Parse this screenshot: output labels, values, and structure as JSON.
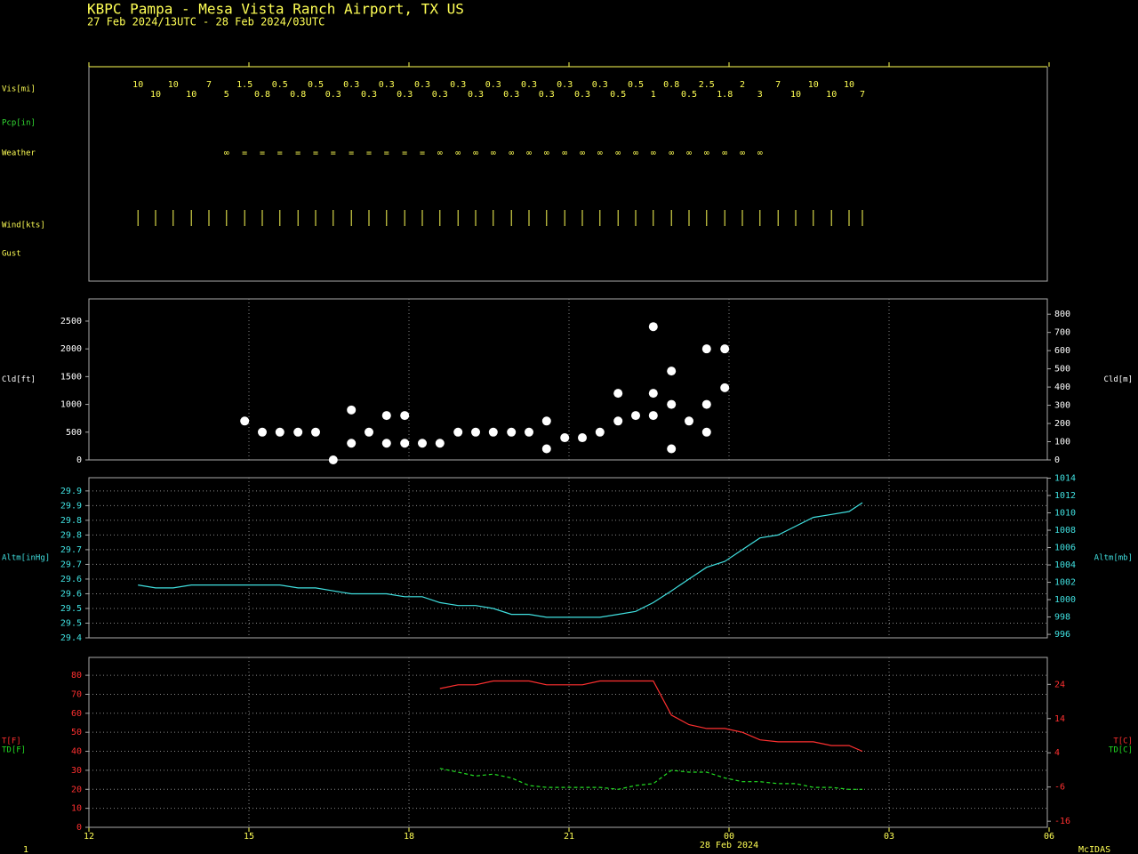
{
  "chart_data": {
    "type": "meteogram",
    "title": "KBPC  Pampa - Mesa Vista Ranch Airport, TX US",
    "subtitle": "27 Feb 2024/13UTC - 28 Feb 2024/03UTC",
    "date_label": "28 Feb 2024",
    "page_number": "1",
    "footer": "McIDAS",
    "xlim": [
      12,
      30
    ],
    "xticks": [
      12,
      15,
      18,
      21,
      {
        "value": 24,
        "label": "00"
      },
      {
        "value": 27,
        "label": "03"
      },
      {
        "value": 30,
        "label": "06"
      }
    ],
    "x": [
      12.92,
      13.25,
      13.58,
      13.92,
      14.25,
      14.58,
      14.92,
      15.25,
      15.58,
      15.92,
      16.25,
      16.58,
      16.92,
      17.25,
      17.58,
      17.92,
      18.25,
      18.58,
      18.92,
      19.25,
      19.58,
      19.92,
      20.25,
      20.58,
      20.92,
      21.25,
      21.58,
      21.92,
      22.25,
      22.58,
      22.92,
      23.25,
      23.58,
      23.92,
      24.25,
      24.58,
      24.92,
      25.25,
      25.58,
      25.92,
      26.25,
      26.5
    ],
    "panels": [
      {
        "type": "rows",
        "rows": [
          {
            "label": "Vis[mi]",
            "color": "#ffff55",
            "values": [
              10,
              10,
              10,
              10,
              7,
              5,
              1.5,
              0.8,
              0.5,
              0.8,
              0.5,
              0.3,
              0.3,
              0.3,
              0.3,
              0.3,
              0.3,
              0.3,
              0.3,
              0.3,
              0.3,
              0.3,
              0.3,
              0.3,
              0.3,
              0.3,
              0.3,
              0.5,
              0.5,
              1,
              0.8,
              0.5,
              2.5,
              1.8,
              2,
              3,
              7,
              10,
              10,
              10,
              10,
              7
            ]
          },
          {
            "label": "Pcp[in]",
            "color": "#33dd33"
          },
          {
            "label": "Weather",
            "color": "#ffff55",
            "values": [
              null,
              null,
              null,
              null,
              null,
              "∞",
              "=",
              "=",
              "=",
              "=",
              "=",
              "=",
              "=",
              "=",
              "=",
              "=",
              "=",
              "∞",
              "∞",
              "∞",
              "∞",
              "∞",
              "∞",
              "∞",
              "∞",
              "∞",
              "∞",
              "∞",
              "∞",
              "∞",
              "∞",
              "∞",
              "∞",
              "∞",
              "∞",
              "∞",
              null,
              null,
              null,
              null,
              null,
              null
            ]
          },
          {
            "label": "Wind[kts]",
            "color": "#ffff55",
            "sticks": true
          },
          {
            "label": "Gust",
            "color": "#ffff55"
          }
        ]
      },
      {
        "type": "scatter",
        "ylabel": "Cld[ft]",
        "y2label": "Cld[m]",
        "color": "#ffffff",
        "grid": "x",
        "ylim": [
          0,
          2900
        ],
        "yticks": [
          0,
          500,
          1000,
          1500,
          2000,
          2500
        ],
        "y2lim": [
          0,
          884
        ],
        "y2ticks": [
          0,
          100,
          200,
          300,
          400,
          500,
          600,
          700,
          800
        ],
        "points": {
          "x": [
            14.92,
            15.25,
            15.58,
            15.92,
            16.25,
            16.58,
            16.92,
            16.92,
            17.25,
            17.58,
            17.58,
            17.92,
            17.92,
            18.25,
            18.58,
            18.92,
            19.25,
            19.58,
            19.92,
            20.25,
            20.58,
            20.58,
            20.92,
            21.25,
            21.58,
            21.92,
            21.92,
            22.25,
            22.58,
            22.58,
            22.58,
            22.92,
            22.92,
            22.92,
            23.25,
            23.58,
            23.58,
            23.58,
            23.92,
            23.92
          ],
          "y": [
            700,
            500,
            500,
            500,
            500,
            0,
            900,
            300,
            500,
            800,
            300,
            800,
            300,
            300,
            300,
            500,
            500,
            500,
            500,
            500,
            700,
            200,
            400,
            400,
            500,
            1200,
            700,
            800,
            2400,
            1200,
            800,
            1600,
            1000,
            200,
            700,
            2000,
            1000,
            500,
            2000,
            1300
          ]
        }
      },
      {
        "type": "line",
        "ylabel": "Altm[inHg]",
        "y2label": "Altm[mb]",
        "label_color": "#40e0e0",
        "grid": "both",
        "ylim": [
          29.4,
          29.945
        ],
        "yticks": [
          29.4,
          {
            "value": 29.45,
            "label": "29.5"
          },
          29.5,
          {
            "value": 29.55,
            "label": "29.6"
          },
          29.6,
          {
            "value": 29.65,
            "label": "29.7"
          },
          29.7,
          {
            "value": 29.75,
            "label": "29.8"
          },
          29.8,
          {
            "value": 29.85,
            "label": "29.9"
          },
          29.9
        ],
        "y2lim": [
          995.6,
          1014.05
        ],
        "y2ticks": [
          996,
          998,
          1000,
          1002,
          1004,
          1006,
          1008,
          1010,
          1012,
          1014
        ],
        "series": [
          {
            "color": "#40e0e0",
            "values": [
              29.58,
              29.57,
              29.57,
              29.58,
              29.58,
              29.58,
              29.58,
              29.58,
              29.58,
              29.57,
              29.57,
              29.56,
              29.55,
              29.55,
              29.55,
              29.54,
              29.54,
              29.52,
              29.51,
              29.51,
              29.5,
              29.48,
              29.48,
              29.47,
              29.47,
              29.47,
              29.47,
              29.48,
              29.49,
              29.52,
              29.56,
              29.6,
              29.64,
              29.66,
              29.7,
              29.74,
              29.75,
              29.78,
              29.81,
              29.82,
              29.83,
              29.86
            ]
          }
        ]
      },
      {
        "type": "line",
        "label_color": "#ff3030",
        "grid": "both",
        "ylim": [
          0,
          89.4
        ],
        "yticks": [
          0,
          10,
          20,
          30,
          40,
          50,
          60,
          70,
          80
        ],
        "y2lim": [
          -17.78,
          31.89
        ],
        "y2ticks": [
          -16,
          -6,
          4,
          14,
          24
        ],
        "series": [
          {
            "name": "T[F]",
            "y2name": "T[C]",
            "color": "#ff3030",
            "dashed": false,
            "values": [
              null,
              null,
              null,
              null,
              null,
              null,
              null,
              null,
              null,
              null,
              null,
              null,
              null,
              null,
              null,
              null,
              null,
              73,
              75,
              75,
              77,
              77,
              77,
              75,
              75,
              75,
              77,
              77,
              77,
              77,
              59,
              54,
              52,
              52,
              50,
              46,
              45,
              45,
              45,
              43,
              43,
              40
            ]
          },
          {
            "name": "TD[F]",
            "y2name": "TD[C]",
            "color": "#22dd22",
            "dashed": true,
            "values": [
              null,
              null,
              null,
              null,
              null,
              null,
              null,
              null,
              null,
              null,
              null,
              null,
              null,
              null,
              null,
              null,
              null,
              31,
              29,
              27,
              28,
              26,
              22,
              21,
              21,
              21,
              21,
              20,
              22,
              23,
              30,
              29,
              29,
              26,
              24,
              24,
              23,
              23,
              21,
              21,
              20,
              20
            ]
          }
        ]
      }
    ]
  }
}
